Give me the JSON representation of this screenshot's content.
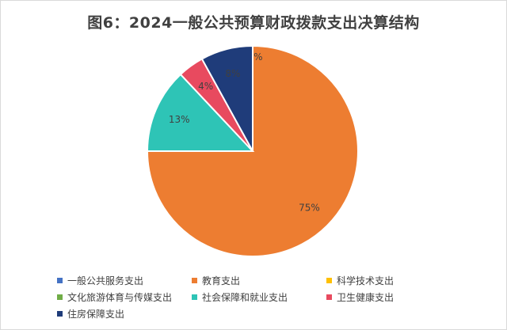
{
  "chart_data": {
    "type": "pie",
    "title": "图6：2024一般公共预算财政拨款支出决算结构",
    "slices": [
      {
        "label": "一般公共服务支出",
        "value": 0,
        "value_label": "0%",
        "color": "#4472c4"
      },
      {
        "label": "教育支出",
        "value": 75,
        "value_label": "75%",
        "color": "#ed7d31"
      },
      {
        "label": "科学技术支出",
        "value": 0,
        "value_label": "0%",
        "color": "#ffc000"
      },
      {
        "label": "文化旅游体育与传媒支出",
        "value": 0,
        "value_label": "0%",
        "color": "#70ad47"
      },
      {
        "label": "社会保障和就业支出",
        "value": 13,
        "value_label": "13%",
        "color": "#2ec4b6"
      },
      {
        "label": "卫生健康支出",
        "value": 4,
        "value_label": "4%",
        "color": "#e84a5f"
      },
      {
        "label": "住房保障支出",
        "value": 8,
        "value_label": "8%",
        "color": "#1f3c7a"
      }
    ],
    "legend_position": "bottom"
  }
}
